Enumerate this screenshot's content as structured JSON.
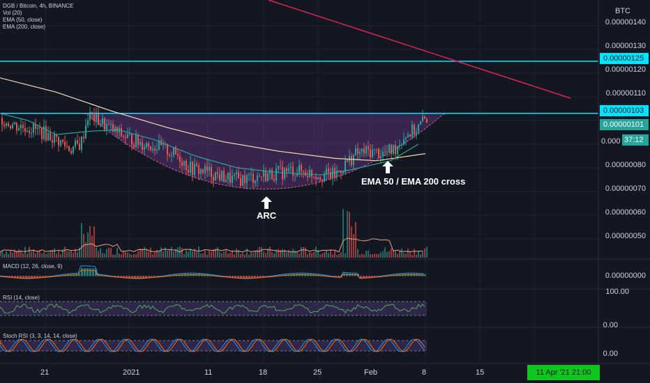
{
  "header": {
    "symbol_line": "DGB / Bitcoin, 4h, BINANCE",
    "indicators": [
      "Vol (20)",
      "EMA (50, close)",
      "EMA (200, close)"
    ]
  },
  "panes": {
    "macd_label": "MACD (12, 26, close, 9)",
    "rsi_label": "RSI (14, close)",
    "stoch_label": "Stoch RSI (3, 3, 14, 14, close)"
  },
  "price_axis": {
    "currency": "BTC",
    "labels": [
      "0.00000140",
      "0.00000130",
      "0.00000120",
      "0.00000110",
      "0.00000090",
      "0.00000080",
      "0.00000070",
      "0.00000060",
      "0.00000050"
    ],
    "macd_value": "0.00000000",
    "rsi_labels": [
      "100.00",
      "0.00"
    ],
    "stoch_value": "0.00"
  },
  "tags": {
    "upper_line": "0.00000125",
    "lower_line": "0.00000103",
    "last_price": "0.00000101",
    "partial": "0.000",
    "countdown": "37:12"
  },
  "annotations": {
    "arc": "ARC",
    "cross": "EMA 50 / EMA 200 cross"
  },
  "time_axis": {
    "labels": [
      "21",
      "2021",
      "11",
      "18",
      "25",
      "Feb",
      "8",
      "15",
      "22"
    ],
    "cursor_label": "11 Apr '21   21:00"
  },
  "colors": {
    "background": "#131722",
    "cyan_line": "#00e5ff",
    "trend_line": "#e0234e",
    "ema50": "#26a69a",
    "ema200": "#f5deb3",
    "up": "#26a69a",
    "down": "#ef5350",
    "arc_fill": "#7b3fa0",
    "time_tag": "#0ec61e"
  },
  "chart_data": {
    "type": "candlestick",
    "y_range": [
      4.5e-07,
      1.45e-06
    ],
    "horizontal_levels": [
      1.25e-06,
      1.03e-06
    ],
    "ema50": [
      [
        0,
        1.03e-06
      ],
      [
        40,
        1e-06
      ],
      [
        80,
        9.4e-07
      ],
      [
        130,
        9.55e-07
      ],
      [
        170,
        9.6e-07
      ],
      [
        220,
        9.2e-07
      ],
      [
        280,
        8.5e-07
      ],
      [
        340,
        8e-07
      ],
      [
        400,
        7.8e-07
      ],
      [
        460,
        7.7e-07
      ],
      [
        500,
        7.9e-07
      ],
      [
        560,
        8.3e-07
      ],
      [
        600,
        9e-07
      ]
    ],
    "ema200": [
      [
        0,
        1.18e-06
      ],
      [
        80,
        1.12e-06
      ],
      [
        160,
        1.04e-06
      ],
      [
        240,
        9.7e-07
      ],
      [
        320,
        9.1e-07
      ],
      [
        400,
        8.7e-07
      ],
      [
        480,
        8.4e-07
      ],
      [
        540,
        8.3e-07
      ],
      [
        610,
        8.6e-07
      ]
    ],
    "price": [
      [
        5,
        1e-06
      ],
      [
        20,
        9.8e-07
      ],
      [
        40,
        9.7e-07
      ],
      [
        60,
        9.5e-07
      ],
      [
        80,
        9.2e-07
      ],
      [
        100,
        8.8e-07
      ],
      [
        115,
        9e-07
      ],
      [
        125,
        1.02e-06
      ],
      [
        135,
        1.01e-06
      ],
      [
        150,
        9.8e-07
      ],
      [
        165,
        9.5e-07
      ],
      [
        180,
        9.3e-07
      ],
      [
        195,
        9.1e-07
      ],
      [
        210,
        9e-07
      ],
      [
        225,
        8.9e-07
      ],
      [
        240,
        8.7e-07
      ],
      [
        255,
        8.5e-07
      ],
      [
        270,
        8e-07
      ],
      [
        285,
        7.9e-07
      ],
      [
        300,
        7.8e-07
      ],
      [
        320,
        7.6e-07
      ],
      [
        340,
        7.5e-07
      ],
      [
        360,
        7.6e-07
      ],
      [
        380,
        7.7e-07
      ],
      [
        400,
        7.8e-07
      ],
      [
        420,
        7.9e-07
      ],
      [
        440,
        7.8e-07
      ],
      [
        460,
        7.7e-07
      ],
      [
        480,
        7.7e-07
      ],
      [
        495,
        8.2e-07
      ],
      [
        510,
        8.6e-07
      ],
      [
        530,
        8.7e-07
      ],
      [
        550,
        8.6e-07
      ],
      [
        565,
        8.8e-07
      ],
      [
        580,
        9.4e-07
      ],
      [
        595,
        9.6e-07
      ],
      [
        610,
        1.01e-06
      ]
    ]
  }
}
